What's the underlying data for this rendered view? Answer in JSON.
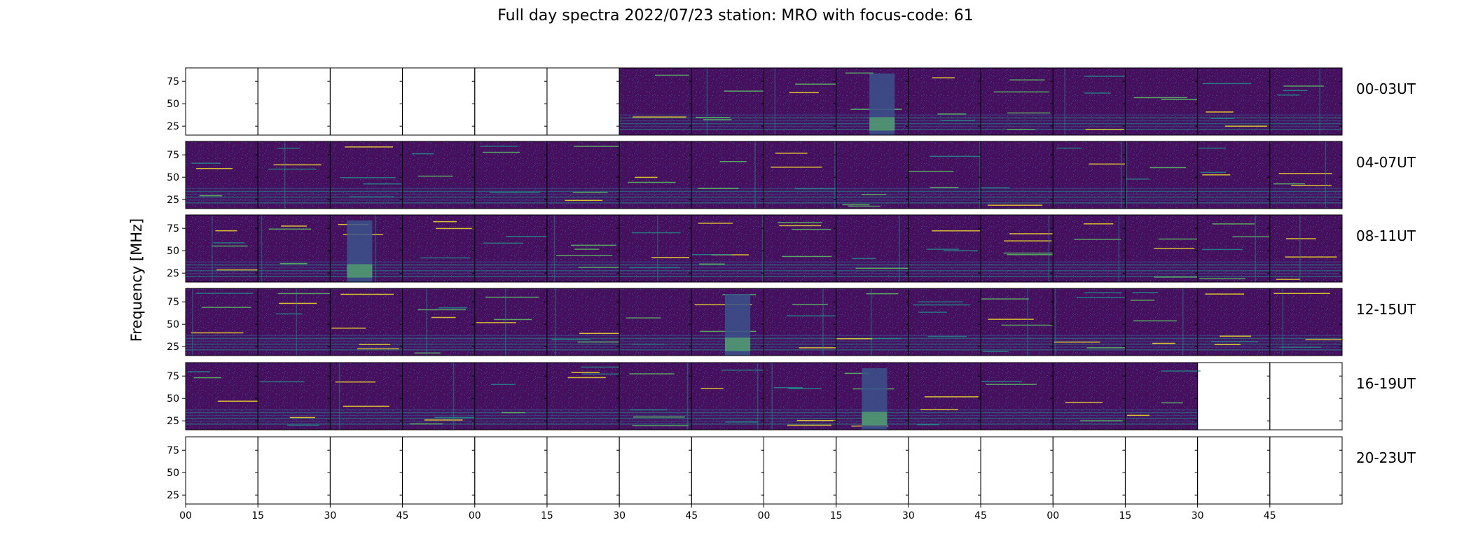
{
  "chart_data": {
    "type": "heatmap",
    "title": "Full day spectra 2022/07/23 station: MRO with focus-code: 61",
    "ylabel": "Frequency [MHz]",
    "xlabel": "",
    "ylim": [
      15,
      90
    ],
    "y_ticks": [
      "75",
      "50",
      "25"
    ],
    "x_ticks": [
      "00",
      "15",
      "30",
      "45",
      "00",
      "15",
      "30",
      "45",
      "00",
      "15",
      "30",
      "45",
      "00",
      "15",
      "30",
      "45"
    ],
    "colormap": [
      "#440154",
      "#3b528b",
      "#21918c",
      "#5ec962",
      "#fde725"
    ],
    "rows": [
      {
        "label": "00-03UT",
        "panels": [
          "empty",
          "empty",
          "empty",
          "empty",
          "empty",
          "empty",
          "active",
          "active",
          "active",
          "strong",
          "active",
          "active",
          "active",
          "active",
          "active",
          "active"
        ]
      },
      {
        "label": "04-07UT",
        "panels": [
          "active",
          "active",
          "active",
          "active",
          "active",
          "active",
          "active",
          "active",
          "active",
          "active",
          "active",
          "active",
          "active",
          "active",
          "active",
          "active"
        ]
      },
      {
        "label": "08-11UT",
        "panels": [
          "active",
          "active",
          "strong",
          "active",
          "active",
          "active",
          "active",
          "active",
          "active",
          "active",
          "active",
          "active",
          "active",
          "active",
          "active",
          "active"
        ]
      },
      {
        "label": "12-15UT",
        "panels": [
          "active",
          "active",
          "active",
          "active",
          "active",
          "active",
          "active",
          "strong",
          "active",
          "active",
          "active",
          "active",
          "active",
          "active",
          "active",
          "active"
        ]
      },
      {
        "label": "16-19UT",
        "panels": [
          "active",
          "active",
          "active",
          "active",
          "active",
          "active",
          "active",
          "active",
          "active",
          "strong",
          "active",
          "active",
          "active",
          "active",
          "empty",
          "empty"
        ]
      },
      {
        "label": "20-23UT",
        "panels": [
          "empty",
          "empty",
          "empty",
          "empty",
          "empty",
          "empty",
          "empty",
          "empty",
          "empty",
          "empty",
          "empty",
          "empty",
          "empty",
          "empty",
          "empty",
          "empty"
        ]
      }
    ]
  }
}
